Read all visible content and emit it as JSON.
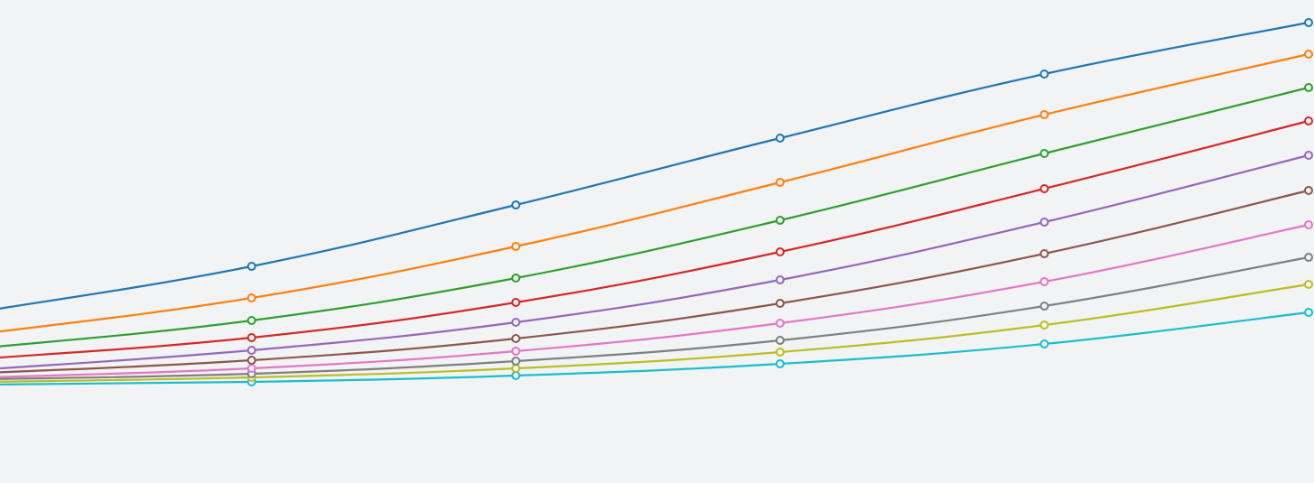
{
  "chart_data": {
    "type": "line",
    "title": "",
    "xlabel": "",
    "ylabel": "",
    "grid": false,
    "legend": "none",
    "xlim": [
      0,
      5
    ],
    "ylim": [
      0,
      535
    ],
    "x": [
      0,
      1,
      2,
      3,
      4,
      5
    ],
    "point_x": [
      1,
      2,
      3,
      4,
      5
    ],
    "series": [
      {
        "color": "#1f77b4",
        "values": [
          191,
          240,
          308,
          382,
          453,
          510
        ]
      },
      {
        "color": "#ff7f0e",
        "values": [
          166,
          205,
          262,
          333,
          408,
          475
        ]
      },
      {
        "color": "#2ca02c",
        "values": [
          150,
          180,
          227,
          291,
          365,
          438
        ]
      },
      {
        "color": "#d62728",
        "values": [
          138,
          161,
          200,
          256,
          326,
          401
        ]
      },
      {
        "color": "#9467bd",
        "values": [
          126,
          147,
          178,
          225,
          289,
          363
        ]
      },
      {
        "color": "#8c564b",
        "values": [
          122,
          136,
          160,
          199,
          254,
          324
        ]
      },
      {
        "color": "#e377c2",
        "values": [
          117,
          127,
          146,
          177,
          223,
          286
        ]
      },
      {
        "color": "#7f7f7f",
        "values": [
          115,
          121,
          135,
          158,
          196,
          250
        ]
      },
      {
        "color": "#bcbd22",
        "values": [
          112,
          117,
          127,
          145,
          175,
          220
        ]
      },
      {
        "color": "#17becf",
        "values": [
          109,
          112,
          119,
          132,
          154,
          189
        ]
      }
    ]
  }
}
